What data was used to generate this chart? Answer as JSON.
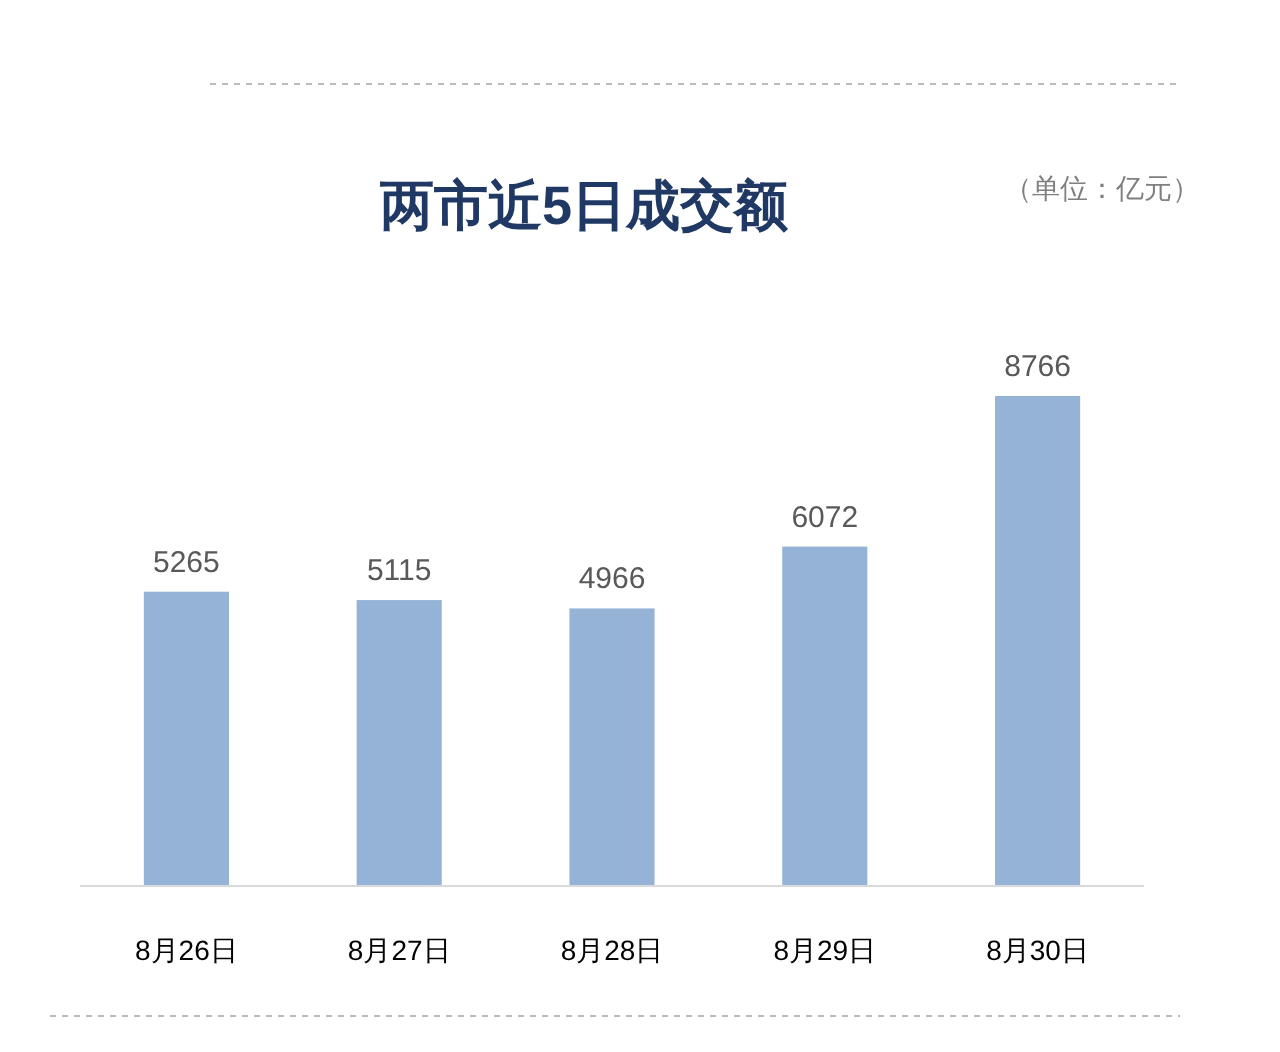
{
  "chart_data": {
    "type": "bar",
    "title": "两市近5日成交额",
    "annotations": [
      "（单位：亿元）"
    ],
    "categories": [
      "8月26日",
      "8月27日",
      "8月28日",
      "8月29日",
      "8月30日"
    ],
    "values": [
      5265,
      5115,
      4966,
      6072,
      8766
    ],
    "color": "#95b3d7",
    "data_labels": true
  }
}
